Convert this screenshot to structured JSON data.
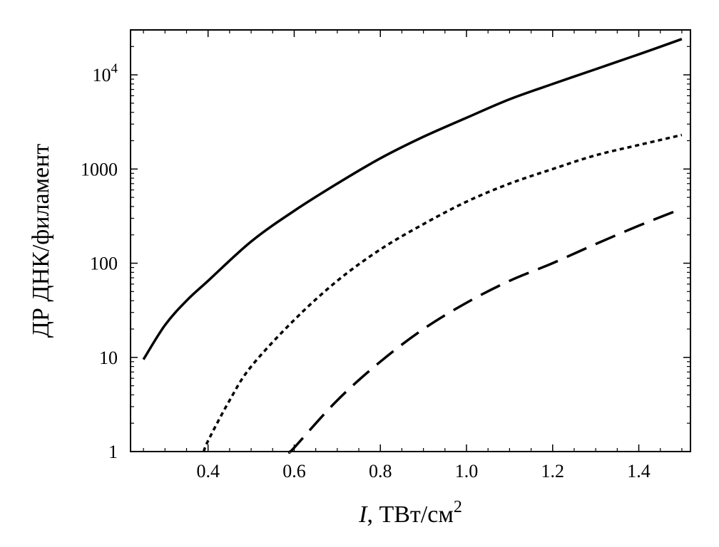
{
  "chart_data": {
    "type": "line",
    "xlabel": {
      "italic": "I",
      "rest": ", ТВт/см",
      "sup": "2"
    },
    "ylabel": "ДР ДНК/филамент",
    "xlim": [
      0.22,
      1.52
    ],
    "ylim": [
      1,
      30000
    ],
    "yscale": "log",
    "x_ticks": [
      0.4,
      0.6,
      0.8,
      1.0,
      1.2,
      1.4
    ],
    "x_tick_labels": [
      "0.4",
      "0.6",
      "0.8",
      "1.0",
      "1.2",
      "1.4"
    ],
    "y_ticks": [
      1,
      10,
      100,
      1000,
      10000
    ],
    "y_tick_labels": [
      {
        "base": "1",
        "sup": ""
      },
      {
        "base": "10",
        "sup": ""
      },
      {
        "base": "100",
        "sup": ""
      },
      {
        "base": "1000",
        "sup": ""
      },
      {
        "base": "10",
        "sup": "4"
      }
    ],
    "series": [
      {
        "style": "solid",
        "x": [
          0.25,
          0.3,
          0.35,
          0.4,
          0.5,
          0.6,
          0.7,
          0.8,
          0.9,
          1.0,
          1.1,
          1.2,
          1.3,
          1.4,
          1.5
        ],
        "y": [
          9.5,
          22,
          40,
          65,
          170,
          360,
          700,
          1300,
          2200,
          3500,
          5500,
          8000,
          11500,
          16500,
          24000
        ]
      },
      {
        "style": "dotted",
        "x": [
          0.39,
          0.4,
          0.45,
          0.5,
          0.6,
          0.7,
          0.8,
          0.9,
          1.0,
          1.1,
          1.2,
          1.3,
          1.4,
          1.5
        ],
        "y": [
          1,
          1.3,
          3.5,
          8,
          25,
          65,
          140,
          260,
          450,
          700,
          1000,
          1400,
          1800,
          2300
        ]
      },
      {
        "style": "dashed",
        "x": [
          0.59,
          0.6,
          0.7,
          0.8,
          0.9,
          1.0,
          1.1,
          1.2,
          1.3,
          1.4,
          1.5
        ],
        "y": [
          1,
          1.1,
          3.5,
          9,
          20,
          38,
          65,
          100,
          160,
          250,
          380
        ]
      }
    ]
  }
}
